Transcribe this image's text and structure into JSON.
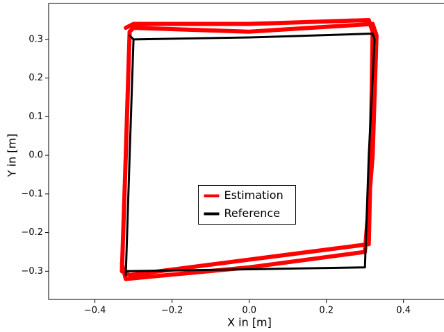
{
  "chart_data": {
    "type": "line",
    "xlabel": "X in [m]",
    "ylabel": "Y in [m]",
    "xlim": [
      -0.52,
      0.505
    ],
    "ylim": [
      -0.373,
      0.393
    ],
    "xticks": [
      {
        "value": -0.4,
        "label": "−0.4"
      },
      {
        "value": -0.2,
        "label": "−0.2"
      },
      {
        "value": 0.0,
        "label": "0.0"
      },
      0.2,
      0.4
    ],
    "yticks": [
      {
        "value": -0.3,
        "label": "−0.3"
      },
      {
        "value": -0.2,
        "label": "−0.2"
      },
      {
        "value": -0.1,
        "label": "−0.1"
      },
      {
        "value": 0.0,
        "label": "0.0"
      },
      0.1,
      0.2,
      0.3
    ],
    "legend": "center",
    "series": [
      {
        "name": "Estimation",
        "color": "#ff0000",
        "x": [
          -0.32,
          -0.3,
          0.0,
          0.31,
          0.32,
          0.315,
          0.31,
          0.0,
          -0.31,
          -0.33,
          -0.32,
          -0.31,
          -0.3,
          0.0,
          0.32,
          0.33,
          0.32,
          0.3,
          0.0,
          -0.32,
          -0.33
        ],
        "values": [
          0.33,
          0.34,
          0.34,
          0.35,
          0.32,
          0.0,
          -0.23,
          -0.27,
          -0.31,
          -0.3,
          0.0,
          0.32,
          0.33,
          0.32,
          0.34,
          0.31,
          0.0,
          -0.25,
          -0.29,
          -0.32,
          -0.28
        ]
      },
      {
        "name": "Reference",
        "color": "#000000",
        "x": [
          -0.31,
          -0.3,
          0.0,
          0.32,
          0.325,
          0.31,
          0.3,
          0.0,
          -0.32,
          -0.32,
          -0.31,
          -0.3
        ],
        "values": [
          0.31,
          0.3,
          0.305,
          0.315,
          0.3,
          0.0,
          -0.29,
          -0.295,
          -0.3,
          -0.31,
          0.0,
          0.3
        ]
      }
    ]
  }
}
